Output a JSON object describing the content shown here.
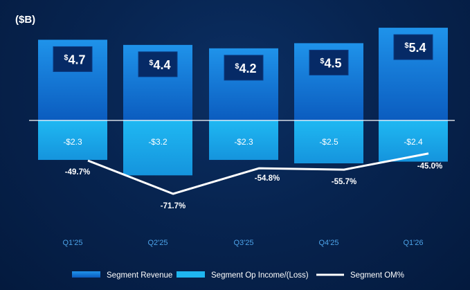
{
  "unit_label": "($B)",
  "chart_data": {
    "type": "bar",
    "categories": [
      "Q1'25",
      "Q2'25",
      "Q3'25",
      "Q4'25",
      "Q1'26"
    ],
    "series": [
      {
        "name": "Segment Revenue",
        "values": [
          4.7,
          4.4,
          4.2,
          4.5,
          5.4
        ],
        "labels": [
          "4.7",
          "4.4",
          "4.2",
          "4.5",
          "5.4"
        ],
        "color": "#1a86e0"
      },
      {
        "name": "Segment Op Income/(Loss)",
        "values": [
          -2.3,
          -3.2,
          -2.3,
          -2.5,
          -2.4
        ],
        "labels": [
          "-$2.3",
          "-$3.2",
          "-$2.3",
          "-$2.5",
          "-$2.4"
        ],
        "color": "#1fb6f0"
      },
      {
        "name": "Segment OM%",
        "type": "line",
        "values": [
          -49.7,
          -71.7,
          -54.8,
          -55.7,
          -45.0
        ],
        "labels": [
          "-49.7%",
          "-71.7%",
          "-54.8%",
          "-55.7%",
          "-45.0%"
        ],
        "color": "#ffffff"
      }
    ],
    "currency_symbol": "$",
    "legend_position": "bottom",
    "grid": false
  },
  "colors": {
    "revenue_top": "#1f93ea",
    "revenue_bottom": "#0a55b5",
    "opinc": "#20b4ef",
    "value_box": "#062a66",
    "baseline": "#ffffff",
    "tick": "#4da3e8"
  }
}
